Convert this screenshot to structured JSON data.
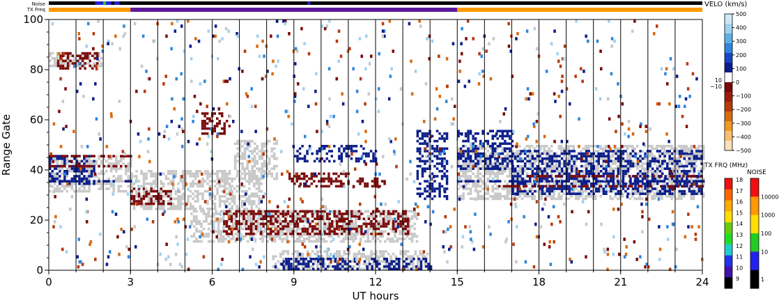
{
  "chart_data": {
    "type": "heatmap",
    "title": "",
    "xlabel": "UT hours",
    "ylabel": "Range Gate",
    "xlim": [
      0,
      24
    ],
    "ylim": [
      0,
      100
    ],
    "x_ticks": [
      0,
      3,
      6,
      9,
      12,
      15,
      18,
      21,
      24
    ],
    "y_ticks": [
      0,
      20,
      40,
      60,
      80,
      100
    ],
    "scan_boundaries_ut": [
      1,
      2,
      3,
      4,
      5,
      6,
      7,
      8,
      9,
      10,
      11,
      12,
      13,
      14,
      15,
      16,
      17,
      18,
      19,
      20,
      21,
      22,
      23
    ],
    "strip_labels": {
      "noise": "Noise",
      "txfreq": "TX Freq"
    },
    "txfreq_segments": [
      {
        "start": 0,
        "end": 3,
        "color": "#ff9900"
      },
      {
        "start": 3,
        "end": 15,
        "color": "#5a1a9a"
      },
      {
        "start": 15,
        "end": 24,
        "color": "#ff9900"
      }
    ],
    "noise_segments": [
      {
        "start": 0,
        "end": 24,
        "color": "#000000"
      },
      {
        "start": 1.7,
        "end": 2.3,
        "color": "#2222cc"
      },
      {
        "start": 2.0,
        "end": 2.1,
        "color": "#22cc22"
      },
      {
        "start": 2.4,
        "end": 2.6,
        "color": "#2222cc"
      },
      {
        "start": 9.5,
        "end": 9.6,
        "color": "#2222cc"
      }
    ],
    "velocity_scale": {
      "title": "VELO (km/s)",
      "ticks": [
        "500",
        "400",
        "300",
        "200",
        "100",
        "0",
        "−100",
        "−200",
        "−300",
        "−400",
        "−500"
      ],
      "gap_labels": [
        "10",
        "−10"
      ],
      "colors": [
        "#cfe8f7",
        "#9fd2f0",
        "#5fb0e8",
        "#2f86dd",
        "#1646c2",
        "#0a1d8a",
        "#ffffff",
        "#7a0a0a",
        "#9a1d0a",
        "#b8390c",
        "#d86a10",
        "#f09a20",
        "#f8c070",
        "#fde0b8"
      ]
    },
    "txfreq_scale": {
      "title": "TX FRQ (MHz)",
      "ticks": [
        "18",
        "17",
        "16",
        "15",
        "14",
        "13",
        "12",
        "11",
        "10",
        "9"
      ],
      "colors": [
        "#ee1111",
        "#ff6600",
        "#ffaa00",
        "#ffdd00",
        "#66cc11",
        "#22dd22",
        "#22cccc",
        "#2233ee",
        "#4411aa",
        "#000000"
      ]
    },
    "noise_scale": {
      "title": "NOISE",
      "ticks": [
        "10000",
        "1000",
        "100",
        "10",
        "1"
      ],
      "colors": [
        "#ee1111",
        "#ff9900",
        "#ffdd00",
        "#22cc22",
        "#2222ee",
        "#000000"
      ]
    },
    "colors": {
      "ground_scatter": "#c8c8c8",
      "positive_velocity": "#0a1d8a",
      "negative_velocity": "#7a0a0a"
    },
    "features": [
      {
        "kind": "ground",
        "start": 0,
        "end": 3,
        "gate_lo": 31,
        "gate_hi": 46
      },
      {
        "kind": "ground",
        "start": 3,
        "end": 7.8,
        "gate_lo": 24,
        "gate_hi": 40
      },
      {
        "kind": "ground",
        "start": 6.8,
        "end": 8.4,
        "gate_lo": 36,
        "gate_hi": 52
      },
      {
        "kind": "ground",
        "start": 5.2,
        "end": 13.5,
        "gate_lo": 11,
        "gate_hi": 24
      },
      {
        "kind": "ground",
        "start": 15,
        "end": 24,
        "gate_lo": 28,
        "gate_hi": 50
      },
      {
        "kind": "ground",
        "start": 0,
        "end": 1.9,
        "gate_lo": 81,
        "gate_hi": 87
      },
      {
        "kind": "ground",
        "start": 8.2,
        "end": 14.0,
        "gate_lo": 0,
        "gate_hi": 8
      },
      {
        "kind": "negative",
        "start": 3,
        "end": 4.5,
        "gate_lo": 26,
        "gate_hi": 33
      },
      {
        "kind": "negative",
        "start": 6.4,
        "end": 13.2,
        "gate_lo": 14,
        "gate_hi": 24
      },
      {
        "kind": "negative",
        "start": 8.8,
        "end": 11,
        "gate_lo": 33,
        "gate_hi": 39
      },
      {
        "kind": "negative",
        "start": 11.3,
        "end": 12.3,
        "gate_lo": 33,
        "gate_hi": 37
      },
      {
        "kind": "negative",
        "start": 5.6,
        "end": 6.6,
        "gate_lo": 54,
        "gate_hi": 63
      },
      {
        "kind": "negative",
        "start": 0.3,
        "end": 1.8,
        "gate_lo": 80,
        "gate_hi": 87
      },
      {
        "kind": "positive",
        "start": 13.5,
        "end": 14.6,
        "gate_lo": 28,
        "gate_hi": 56
      },
      {
        "kind": "positive",
        "start": 9,
        "end": 12,
        "gate_lo": 43,
        "gate_hi": 50
      },
      {
        "kind": "positive",
        "start": 15,
        "end": 17,
        "gate_lo": 40,
        "gate_hi": 56
      },
      {
        "kind": "positive",
        "start": 0,
        "end": 1.7,
        "gate_lo": 34,
        "gate_hi": 46
      },
      {
        "kind": "positive",
        "start": 8.5,
        "end": 14,
        "gate_lo": 0,
        "gate_hi": 5
      },
      {
        "kind": "positive",
        "start": 17,
        "end": 24,
        "gate_lo": 30,
        "gate_hi": 48
      }
    ],
    "rows": [
      {
        "kind": "positive",
        "start": 0,
        "end": 3,
        "gate": 35
      },
      {
        "kind": "negative",
        "start": 0,
        "end": 3,
        "gate": 41
      },
      {
        "kind": "negative",
        "start": 0,
        "end": 3,
        "gate": 45
      },
      {
        "kind": "positive",
        "start": 15,
        "end": 24,
        "gate": 35
      },
      {
        "kind": "negative",
        "start": 16.5,
        "end": 24,
        "gate": 33
      },
      {
        "kind": "negative",
        "start": 17.5,
        "end": 24,
        "gate": 37
      }
    ]
  }
}
